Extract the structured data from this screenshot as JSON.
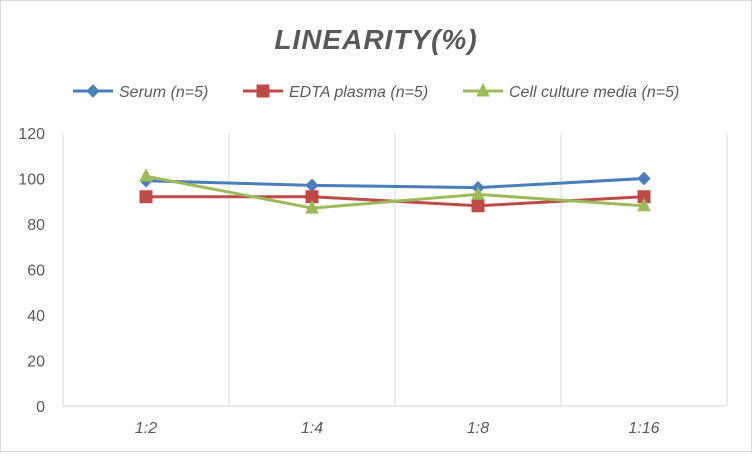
{
  "chart_data": {
    "type": "line",
    "title": "LINEARITY(%)",
    "xlabel": "",
    "ylabel": "",
    "categories": [
      "1:2",
      "1:4",
      "1:8",
      "1:16"
    ],
    "ylim": [
      0,
      120
    ],
    "yticks": [
      0,
      20,
      40,
      60,
      80,
      100,
      120
    ],
    "grid": "vertical",
    "legend": "top",
    "series": [
      {
        "name": "Serum (n=5)",
        "values": [
          99,
          97,
          96,
          100
        ],
        "color": "#4a7ebb",
        "marker": "diamond"
      },
      {
        "name": "EDTA plasma (n=5)",
        "values": [
          92,
          92,
          88,
          92
        ],
        "color": "#be4b48",
        "marker": "square"
      },
      {
        "name": "Cell culture media (n=5)",
        "values": [
          101,
          87,
          93,
          88
        ],
        "color": "#9bbb59",
        "marker": "triangle"
      }
    ]
  }
}
